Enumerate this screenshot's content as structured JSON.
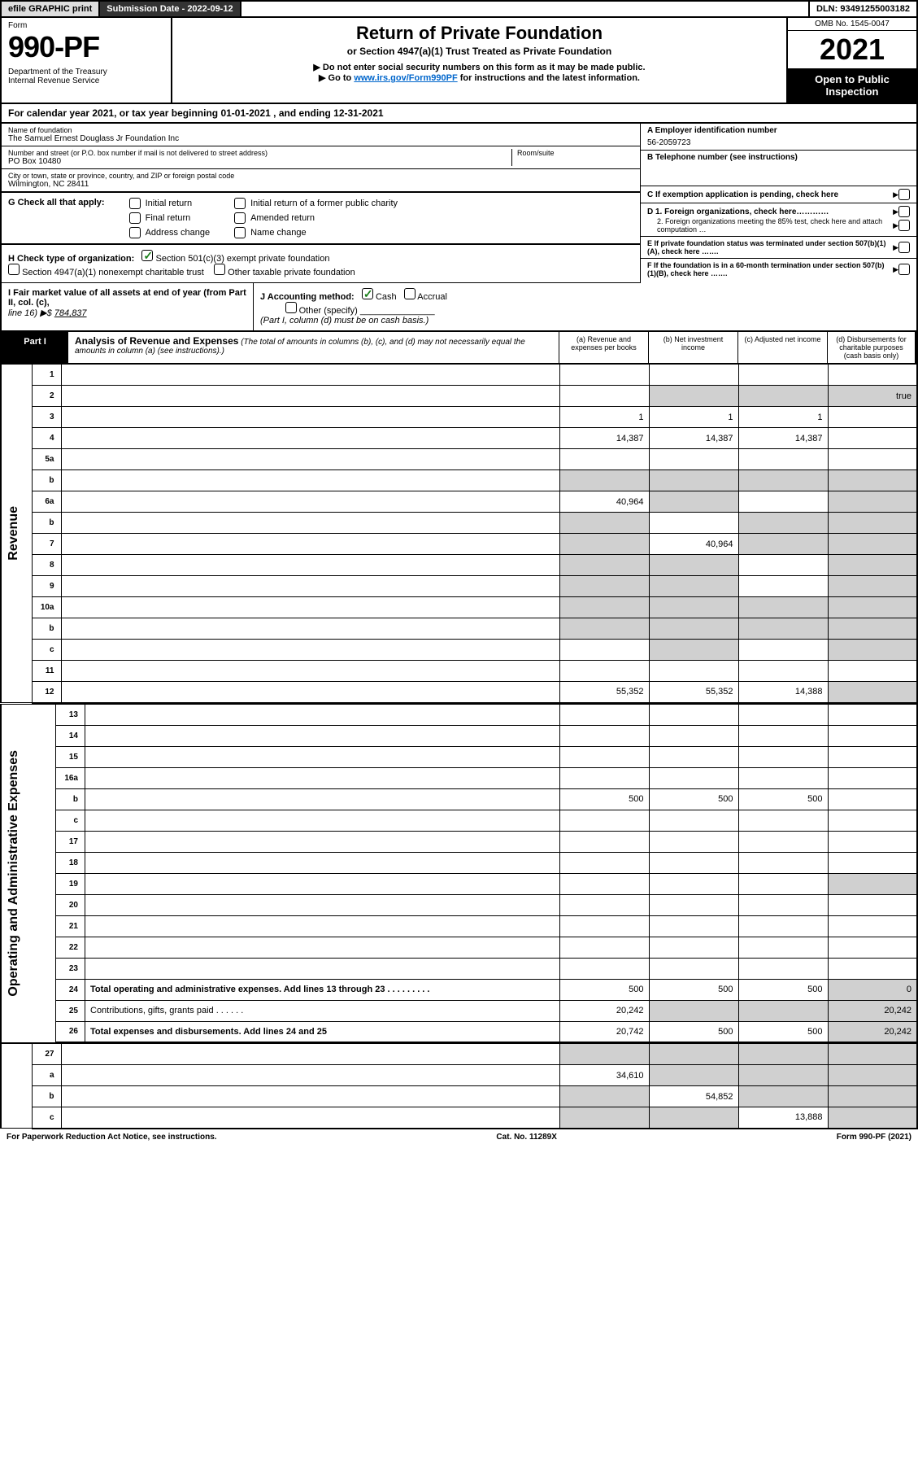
{
  "top": {
    "efile": "efile GRAPHIC print",
    "submission": "Submission Date - 2022-09-12",
    "dln": "DLN: 93491255003182"
  },
  "header": {
    "form_word": "Form",
    "form_num": "990-PF",
    "dept1": "Department of the Treasury",
    "dept2": "Internal Revenue Service",
    "title": "Return of Private Foundation",
    "sub1": "or Section 4947(a)(1) Trust Treated as Private Foundation",
    "sub2a": "▶ Do not enter social security numbers on this form as it may be made public.",
    "sub2b": "▶ Go to ",
    "link": "www.irs.gov/Form990PF",
    "sub2c": " for instructions and the latest information.",
    "omb": "OMB No. 1545-0047",
    "year": "2021",
    "open": "Open to Public Inspection"
  },
  "calyear": "For calendar year 2021, or tax year beginning 01-01-2021                         , and ending 12-31-2021",
  "info": {
    "name_lbl": "Name of foundation",
    "name": "The Samuel Ernest Douglass Jr Foundation Inc",
    "addr_lbl": "Number and street (or P.O. box number if mail is not delivered to street address)",
    "addr": "PO Box 10480",
    "room_lbl": "Room/suite",
    "city_lbl": "City or town, state or province, country, and ZIP or foreign postal code",
    "city": "Wilmington, NC  28411",
    "a_lbl": "A Employer identification number",
    "a_val": "56-2059723",
    "b_lbl": "B Telephone number (see instructions)",
    "c_lbl": "C If exemption application is pending, check here",
    "d1": "D 1. Foreign organizations, check here…………",
    "d2": "2. Foreign organizations meeting the 85% test, check here and attach computation …",
    "e_lbl": "E  If private foundation status was terminated under section 507(b)(1)(A), check here …….",
    "f_lbl": "F  If the foundation is in a 60-month termination under section 507(b)(1)(B), check here ……."
  },
  "g": {
    "label": "G Check all that apply:",
    "initial": "Initial return",
    "final": "Final return",
    "address": "Address change",
    "initial_former": "Initial return of a former public charity",
    "amended": "Amended return",
    "name_change": "Name change"
  },
  "h": {
    "label": "H Check type of organization:",
    "sec501": "Section 501(c)(3) exempt private foundation",
    "sec4947": "Section 4947(a)(1) nonexempt charitable trust",
    "other_tax": "Other taxable private foundation"
  },
  "i": {
    "label": "I Fair market value of all assets at end of year (from Part II, col. (c),",
    "line16": "line 16)  ▶$  784,837"
  },
  "j": {
    "label": "J Accounting method:",
    "cash": "Cash",
    "accrual": "Accrual",
    "other": "Other (specify)",
    "note": "(Part I, column (d) must be on cash basis.)"
  },
  "part1": {
    "label": "Part I",
    "title": "Analysis of Revenue and Expenses",
    "note": " (The total of amounts in columns (b), (c), and (d) may not necessarily equal the amounts in column (a) (see instructions).)",
    "col_a": "(a)   Revenue and expenses per books",
    "col_b": "(b)   Net investment income",
    "col_c": "(c)   Adjusted net income",
    "col_d": "(d)   Disbursements for charitable purposes (cash basis only)"
  },
  "rows": [
    {
      "n": "1",
      "d": "",
      "a": "",
      "b": "",
      "c": ""
    },
    {
      "n": "2",
      "d": "",
      "a": "",
      "b": "",
      "c": "",
      "db": true,
      "dc": true,
      "dd": true
    },
    {
      "n": "3",
      "d": "",
      "a": "1",
      "b": "1",
      "c": "1"
    },
    {
      "n": "4",
      "d": "",
      "a": "14,387",
      "b": "14,387",
      "c": "14,387"
    },
    {
      "n": "5a",
      "d": "",
      "a": "",
      "b": "",
      "c": ""
    },
    {
      "n": "b",
      "d": "",
      "a": "",
      "b": "",
      "c": "",
      "sa": true,
      "sb": true,
      "sc": true,
      "sd": true
    },
    {
      "n": "6a",
      "d": "",
      "a": "40,964",
      "b": "",
      "c": "",
      "sb": true,
      "sd": true
    },
    {
      "n": "b",
      "d": "",
      "a": "",
      "b": "",
      "c": "",
      "sa": true,
      "sc": true,
      "sd": true
    },
    {
      "n": "7",
      "d": "",
      "a": "",
      "b": "40,964",
      "c": "",
      "sa": true,
      "sc": true,
      "sd": true
    },
    {
      "n": "8",
      "d": "",
      "a": "",
      "b": "",
      "c": "",
      "sa": true,
      "sb": true,
      "sd": true
    },
    {
      "n": "9",
      "d": "",
      "a": "",
      "b": "",
      "c": "",
      "sa": true,
      "sb": true,
      "sd": true
    },
    {
      "n": "10a",
      "d": "",
      "a": "",
      "b": "",
      "c": "",
      "sa": true,
      "sb": true,
      "sc": true,
      "sd": true
    },
    {
      "n": "b",
      "d": "",
      "a": "",
      "b": "",
      "c": "",
      "sa": true,
      "sb": true,
      "sc": true,
      "sd": true
    },
    {
      "n": "c",
      "d": "",
      "a": "",
      "b": "",
      "c": "",
      "sb": true,
      "sd": true
    },
    {
      "n": "11",
      "d": "",
      "a": "",
      "b": "",
      "c": ""
    },
    {
      "n": "12",
      "d": "",
      "a": "55,352",
      "b": "55,352",
      "c": "14,388",
      "bold": true,
      "sd": true
    }
  ],
  "rows2": [
    {
      "n": "13",
      "d": "",
      "a": "",
      "b": "",
      "c": ""
    },
    {
      "n": "14",
      "d": "",
      "a": "",
      "b": "",
      "c": ""
    },
    {
      "n": "15",
      "d": "",
      "a": "",
      "b": "",
      "c": ""
    },
    {
      "n": "16a",
      "d": "",
      "a": "",
      "b": "",
      "c": ""
    },
    {
      "n": "b",
      "d": "",
      "a": "500",
      "b": "500",
      "c": "500"
    },
    {
      "n": "c",
      "d": "",
      "a": "",
      "b": "",
      "c": ""
    },
    {
      "n": "17",
      "d": "",
      "a": "",
      "b": "",
      "c": ""
    },
    {
      "n": "18",
      "d": "",
      "a": "",
      "b": "",
      "c": ""
    },
    {
      "n": "19",
      "d": "",
      "a": "",
      "b": "",
      "c": "",
      "sd": true
    },
    {
      "n": "20",
      "d": "",
      "a": "",
      "b": "",
      "c": ""
    },
    {
      "n": "21",
      "d": "",
      "a": "",
      "b": "",
      "c": ""
    },
    {
      "n": "22",
      "d": "",
      "a": "",
      "b": "",
      "c": ""
    },
    {
      "n": "23",
      "d": "",
      "a": "",
      "b": "",
      "c": ""
    },
    {
      "n": "24",
      "d": "Total operating and administrative expenses. Add lines 13 through 23   .   .   .   .   .   .   .   .   .",
      "a": "500",
      "b": "500",
      "c": "500",
      "dd": "0",
      "bold": true
    },
    {
      "n": "25",
      "d": "Contributions, gifts, grants paid     .   .   .   .   .   .",
      "a": "20,242",
      "b": "",
      "c": "",
      "dd": "20,242",
      "sb": true,
      "sc": true
    },
    {
      "n": "26",
      "d": "Total expenses and disbursements. Add lines 24 and 25",
      "a": "20,742",
      "b": "500",
      "c": "500",
      "dd": "20,242",
      "bold": true
    }
  ],
  "rows3": [
    {
      "n": "27",
      "d": "",
      "a": "",
      "b": "",
      "c": "",
      "sa": true,
      "sb": true,
      "sc": true,
      "sd": true
    },
    {
      "n": "a",
      "d": "",
      "a": "34,610",
      "b": "",
      "c": "",
      "bold": true,
      "sb": true,
      "sc": true,
      "sd": true
    },
    {
      "n": "b",
      "d": "",
      "a": "",
      "b": "54,852",
      "c": "",
      "bold": true,
      "sa": true,
      "sc": true,
      "sd": true
    },
    {
      "n": "c",
      "d": "",
      "a": "",
      "b": "",
      "c": "13,888",
      "bold": true,
      "sa": true,
      "sb": true,
      "sd": true
    }
  ],
  "side_labels": {
    "revenue": "Revenue",
    "expenses": "Operating and Administrative Expenses"
  },
  "footer": {
    "left": "For Paperwork Reduction Act Notice, see instructions.",
    "center": "Cat. No. 11289X",
    "right": "Form 990-PF (2021)"
  },
  "colors": {
    "shade": "#d0d0d0",
    "link": "#0066cc",
    "check": "#1a7f1a"
  }
}
